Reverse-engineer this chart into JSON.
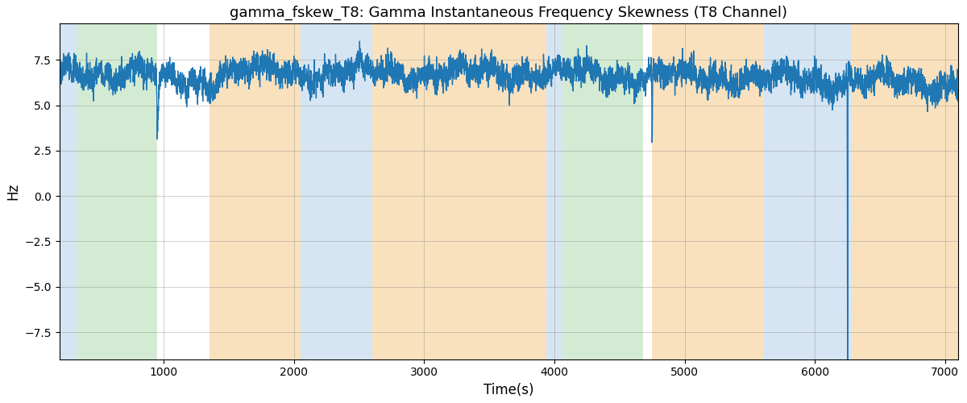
{
  "title": "gamma_fskew_T8: Gamma Instantaneous Frequency Skewness (T8 Channel)",
  "xlabel": "Time(s)",
  "ylabel": "Hz",
  "xlim": [
    200,
    7100
  ],
  "ylim": [
    -9,
    9.5
  ],
  "yticks": [
    -7.5,
    -5.0,
    -2.5,
    0.0,
    2.5,
    5.0,
    7.5
  ],
  "xticks": [
    1000,
    2000,
    3000,
    4000,
    5000,
    6000,
    7000
  ],
  "bg_regions": [
    {
      "xstart": 200,
      "xend": 330,
      "color": "#aecde8",
      "alpha": 0.5
    },
    {
      "xstart": 330,
      "xend": 950,
      "color": "#a8d8a8",
      "alpha": 0.5
    },
    {
      "xstart": 1350,
      "xend": 2050,
      "color": "#f5c98a",
      "alpha": 0.55
    },
    {
      "xstart": 2050,
      "xend": 2600,
      "color": "#aecde8",
      "alpha": 0.5
    },
    {
      "xstart": 2600,
      "xend": 3940,
      "color": "#f5c98a",
      "alpha": 0.55
    },
    {
      "xstart": 3940,
      "xend": 4060,
      "color": "#aecde8",
      "alpha": 0.5
    },
    {
      "xstart": 4060,
      "xend": 4680,
      "color": "#a8d8a8",
      "alpha": 0.5
    },
    {
      "xstart": 4750,
      "xend": 5600,
      "color": "#f5c98a",
      "alpha": 0.55
    },
    {
      "xstart": 5600,
      "xend": 6280,
      "color": "#aecde8",
      "alpha": 0.5
    },
    {
      "xstart": 6280,
      "xend": 7100,
      "color": "#f5c98a",
      "alpha": 0.55
    }
  ],
  "line_color": "#1f77b4",
  "line_width": 1.0,
  "seed": 42,
  "n_points": 6900,
  "t_start": 200,
  "t_end": 7100,
  "figsize": [
    12.0,
    5.0
  ],
  "dpi": 100
}
